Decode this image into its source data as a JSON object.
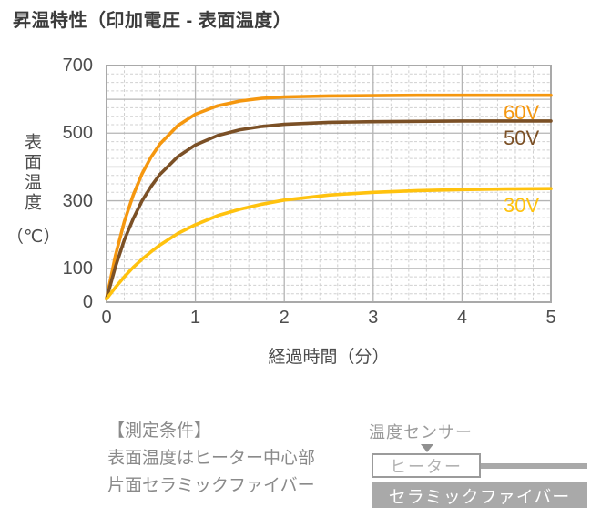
{
  "title": "昇温特性（印加電圧 - 表面温度）",
  "chart_data": {
    "type": "line",
    "title": "昇温特性（印加電圧 - 表面温度）",
    "xlabel": "経過時間（分）",
    "ylabel": "表面温度（℃）",
    "ylabel_main": "表面温度",
    "ylabel_unit": "（℃）",
    "xlim": [
      0,
      5
    ],
    "ylim": [
      0,
      700
    ],
    "x_ticks": [
      0,
      1,
      2,
      3,
      4,
      5
    ],
    "y_ticks": [
      700,
      500,
      300,
      100,
      0
    ],
    "grid": {
      "on": true,
      "x_major": 1,
      "y_major": 100,
      "x_minor": 0.2,
      "y_minor": 25
    },
    "legend_position": "inline-right-of-curves",
    "x": [
      0,
      0.1,
      0.2,
      0.3,
      0.4,
      0.5,
      0.6,
      0.8,
      1,
      1.25,
      1.5,
      1.75,
      2,
      2.5,
      3,
      3.5,
      4,
      4.5,
      5
    ],
    "series": [
      {
        "name": "60V",
        "color": "#F5970F",
        "steady_state_c": 612,
        "values": [
          10,
          138,
          238,
          317,
          380,
          429,
          468,
          522,
          556,
          581,
          595,
          603,
          607,
          610,
          611,
          612,
          612,
          612,
          612
        ]
      },
      {
        "name": "50V",
        "color": "#7B5026",
        "steady_state_c": 536,
        "values": [
          10,
          105,
          184,
          247,
          300,
          342,
          378,
          430,
          465,
          493,
          510,
          520,
          526,
          532,
          534,
          535,
          536,
          536,
          536
        ]
      },
      {
        "name": "30V",
        "color": "#FFC20E",
        "steady_state_c": 336,
        "values": [
          10,
          44,
          75,
          103,
          127,
          149,
          169,
          203,
          229,
          256,
          275,
          290,
          302,
          317,
          325,
          330,
          333,
          335,
          336
        ]
      }
    ]
  },
  "conditions": {
    "heading": "【測定条件】",
    "lines": [
      "表面温度はヒーター中心部",
      "片面セラミックファイバー"
    ]
  },
  "diagram": {
    "sensor_label": "温度センサー",
    "heater_label": "ヒーター",
    "fiber_label": "セラミックファイバー"
  },
  "colors": {
    "background": "#ffffff",
    "title_text": "#3b3b3b",
    "axis_text": "#4d4d4d",
    "grid_minor": "#d0d0d0",
    "grid_major": "#b4b4b4",
    "plot_border": "#a9a9a9",
    "note_text": "#8a8a8a",
    "diagram_gray": "#9b9b9b",
    "diagram_arrow": "#909090",
    "fiber_fill": "#a9a9a9"
  }
}
